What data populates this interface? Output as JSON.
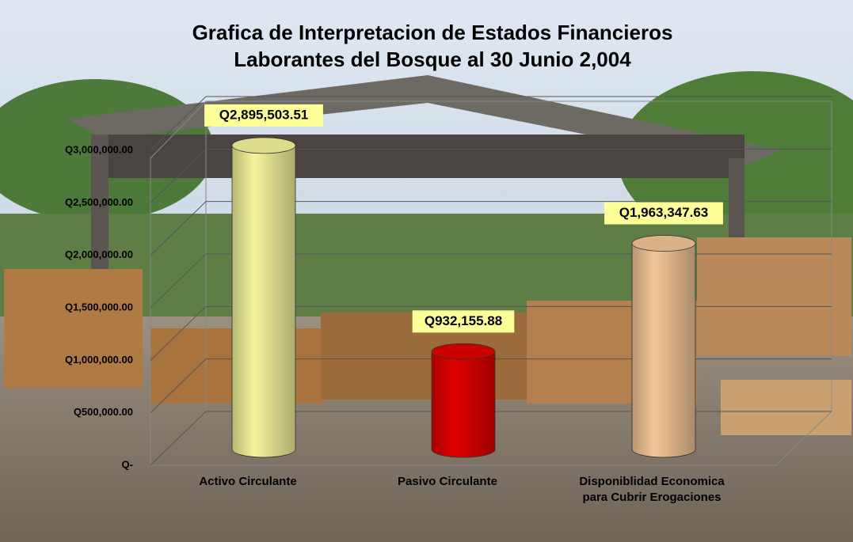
{
  "chart_data": {
    "type": "bar",
    "title": "Grafica de Interpretacion de Estados Financieros",
    "subtitle": "Laborantes del Bosque al 30 Junio 2,004",
    "categories": [
      "Activo Circulante",
      "Pasivo Circulante",
      "Disponiblidad Economica para Cubrir Erogaciones"
    ],
    "series": [
      {
        "name": "Valor",
        "colors": [
          "#f4f59c",
          "#e00000",
          "#f3c697"
        ],
        "values": [
          2895503.51,
          932155.88,
          1963347.63
        ],
        "value_labels": [
          "Q2,895,503.51",
          "Q932,155.88",
          "Q1,963,347.63"
        ]
      }
    ],
    "ylim": [
      0,
      3000000
    ],
    "yticks": [
      {
        "value": 0,
        "label": "Q-"
      },
      {
        "value": 500000,
        "label": "Q500,000.00"
      },
      {
        "value": 1000000,
        "label": "Q1,000,000.00"
      },
      {
        "value": 1500000,
        "label": "Q1,500,000.00"
      },
      {
        "value": 2000000,
        "label": "Q2,000,000.00"
      },
      {
        "value": 2500000,
        "label": "Q2,500,000.00"
      },
      {
        "value": 3000000,
        "label": "Q3,000,000.00"
      }
    ],
    "grid": true
  }
}
